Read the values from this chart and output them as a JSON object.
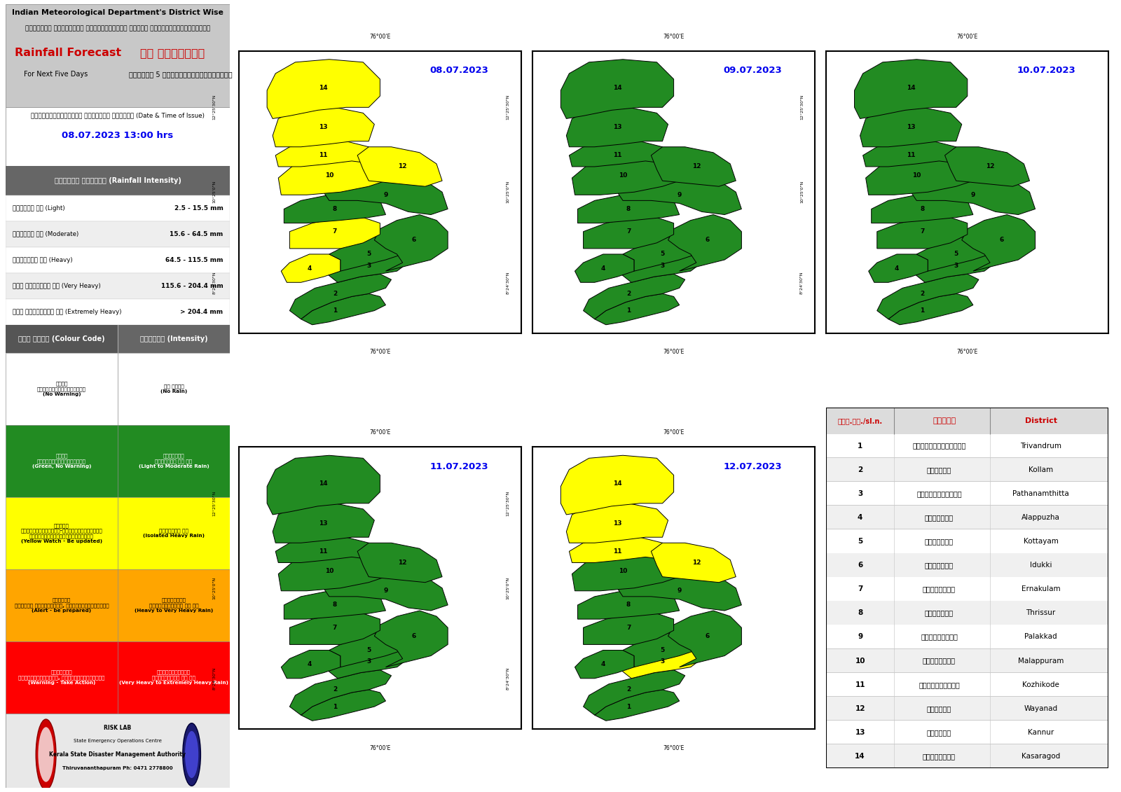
{
  "title_en": "Indian Meteorological Department's District Wise",
  "title_ml": "ഇന്റ്യൻ കാലാവസ്ഥ വകുപ്പിന്റെ ജില്ല അടിസ്ഥാനത്തിലുളള",
  "forecast_en": "Rainfall Forecast",
  "forecast_ml": "മഴ പ്രവചനം",
  "days_en": "For Next Five Days",
  "days_ml": "അടുത്ത 5 ദിവസത്തേക്കുള്ളത്",
  "issue_ml": "പുറപ്പെടുവിച്ച ദിവസവും സമയവും (Date & Time of Issue)",
  "issue_date": "08.07.2023 13:00 hrs",
  "intensity_header_ml": "മഴയുടെ തീവ്രത (Rainfall Intensity)",
  "intensity_rows": [
    [
      "ചാറ്റൽ മഴ (Light)",
      "2.5 - 15.5 mm"
    ],
    [
      "മിതമായ മഴ (Moderate)",
      "15.6 - 64.5 mm"
    ],
    [
      "ശക്തമായ മഴ (Heavy)",
      "64.5 - 115.5 mm"
    ],
    [
      "അതി ശക്തമായ മഴ (Very Heavy)",
      "115.6 - 204.4 mm"
    ],
    [
      "അതി തീവ്രമായ മഴ (Extremely Heavy)",
      "> 204.4 mm"
    ]
  ],
  "colour_code_header": "കളർ കോഡ് (Colour Code)",
  "intensity_col_header": "തീവ്രത (Intensity)",
  "colour_rows": [
    {
      "color": "#FFFFFF",
      "text_ml": "വെളള\nമുന്നറിയിപ്പില്ല",
      "text_en": "(No Warning)",
      "intensity_ml": "മഴ ഇല്ല",
      "intensity_en": "(No Rain)",
      "text_color": "#000000",
      "intensity_color": "#000000"
    },
    {
      "color": "#228B22",
      "text_ml": "പച്ച\nമുന്നറിതിപ്പില്ല",
      "text_en": "(Green, No Warning)",
      "intensity_ml": "നേർത്തോ\nമിതമായോ ആയ മഴ",
      "intensity_en": "(Light to Moderate Rain)",
      "text_color": "#FFFFFF",
      "intensity_color": "#FFFFFF"
    },
    {
      "color": "#FFFF00",
      "text_ml": "മഞ്ഞള\nനിരീക്ഷിക്കുക-മുന്നറിയിപ്പ്\nപുതുക്കികൊണ്ടിരിക്കുക",
      "text_en": "(Yellow Watch - Be updated)",
      "intensity_ml": "ശക്തമായ മഴ",
      "intensity_en": "(Isolated Heavy Rain)",
      "text_color": "#000000",
      "intensity_color": "#000000"
    },
    {
      "color": "#FFA500",
      "text_ml": "ഓറഞ്ച്\nജാഗ്രത പാലിക്കുക, കരുതിയിരിക്കുക",
      "text_en": "(Alert - be prepared)",
      "intensity_ml": "ശക്തമായോ\nഅതിശക്തമായോ ആയ മഴ",
      "intensity_en": "(Heavy to Very Heavy Rain)",
      "text_color": "#000000",
      "intensity_color": "#000000"
    },
    {
      "color": "#FF0000",
      "text_ml": "ചുവപ്പ്\nമുന്നറിയിപ്പ്, പ്രവർത്തിക്കുക",
      "text_en": "(Warning - Take Action)",
      "intensity_ml": "അതിശക്തമായോ\nതീവ്രമായോ ആയ മഴ",
      "intensity_en": "(Very Heavy to Extremely Heavy Rain)",
      "text_color": "#FFFFFF",
      "intensity_color": "#FFFFFF"
    }
  ],
  "dates": [
    "08.07.2023",
    "09.07.2023",
    "10.07.2023",
    "11.07.2023",
    "12.07.2023"
  ],
  "districts": [
    {
      "num": 1,
      "name_ml": "തിരുവനന്തപുരം",
      "name_en": "Trivandrum"
    },
    {
      "num": 2,
      "name_ml": "കൊല്ലം",
      "name_en": "Kollam"
    },
    {
      "num": 3,
      "name_ml": "പത്ഥനംതിട്ട",
      "name_en": "Pathanamthitta"
    },
    {
      "num": 4,
      "name_ml": "ആലപ്പുഴ",
      "name_en": "Alappuzha"
    },
    {
      "num": 5,
      "name_ml": "കോട്ടയം",
      "name_en": "Kottayam"
    },
    {
      "num": 6,
      "name_ml": "ഇടുക്കി",
      "name_en": "Idukki"
    },
    {
      "num": 7,
      "name_ml": "എറണാകുളം",
      "name_en": "Ernakulam"
    },
    {
      "num": 8,
      "name_ml": "തൃശ്ശൂർ",
      "name_en": "Thrissur"
    },
    {
      "num": 9,
      "name_ml": "പാലക്കാട്",
      "name_en": "Palakkad"
    },
    {
      "num": 10,
      "name_ml": "മലപ്പുറം",
      "name_en": "Malappuram"
    },
    {
      "num": 11,
      "name_ml": "കോഴിക്കോട്",
      "name_en": "Kozhikode"
    },
    {
      "num": 12,
      "name_ml": "വയനാട്",
      "name_en": "Wayanad"
    },
    {
      "num": 13,
      "name_ml": "കണ്ണൂർ",
      "name_en": "Kannur"
    },
    {
      "num": 14,
      "name_ml": "കാസരഗോഡ്",
      "name_en": "Kasaragod"
    }
  ],
  "footer_risk": "RISK LAB",
  "footer_org": "State Emergency Operations Centre",
  "footer_org2": "Kerala State Disaster Management Authority",
  "footer_phone": "Thiruvananthapuram Ph: 0471 2778800",
  "map_colors_day1": {
    "1": "#228B22",
    "2": "#228B22",
    "3": "#228B22",
    "4": "#FFFF00",
    "5": "#228B22",
    "6": "#228B22",
    "7": "#FFFF00",
    "8": "#228B22",
    "9": "#228B22",
    "10": "#FFFF00",
    "11": "#FFFF00",
    "12": "#FFFF00",
    "13": "#FFFF00",
    "14": "#FFFF00"
  },
  "map_colors_day2": {
    "1": "#228B22",
    "2": "#228B22",
    "3": "#228B22",
    "4": "#228B22",
    "5": "#228B22",
    "6": "#228B22",
    "7": "#228B22",
    "8": "#228B22",
    "9": "#228B22",
    "10": "#228B22",
    "11": "#228B22",
    "12": "#228B22",
    "13": "#228B22",
    "14": "#228B22"
  },
  "map_colors_day3": {
    "1": "#228B22",
    "2": "#228B22",
    "3": "#228B22",
    "4": "#228B22",
    "5": "#228B22",
    "6": "#228B22",
    "7": "#228B22",
    "8": "#228B22",
    "9": "#228B22",
    "10": "#228B22",
    "11": "#228B22",
    "12": "#228B22",
    "13": "#228B22",
    "14": "#228B22"
  },
  "map_colors_day4": {
    "1": "#228B22",
    "2": "#228B22",
    "3": "#228B22",
    "4": "#228B22",
    "5": "#228B22",
    "6": "#228B22",
    "7": "#228B22",
    "8": "#228B22",
    "9": "#228B22",
    "10": "#228B22",
    "11": "#228B22",
    "12": "#228B22",
    "13": "#228B22",
    "14": "#228B22"
  },
  "map_colors_day5": {
    "1": "#228B22",
    "2": "#228B22",
    "3": "#FFFF00",
    "4": "#228B22",
    "5": "#228B22",
    "6": "#228B22",
    "7": "#228B22",
    "8": "#228B22",
    "9": "#228B22",
    "10": "#228B22",
    "11": "#FFFF00",
    "12": "#FFFF00",
    "13": "#FFFF00",
    "14": "#FFFF00"
  }
}
